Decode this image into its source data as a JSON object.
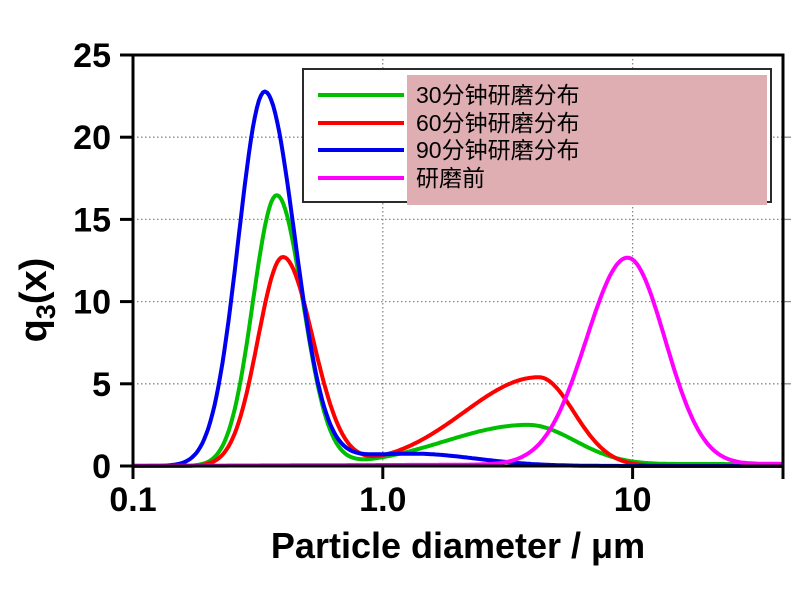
{
  "figure": {
    "background": "#ffffff",
    "frame_color": "#000000",
    "grid_color": "#8a8a8a"
  },
  "chart_data": {
    "type": "line",
    "title": "",
    "x_axis": {
      "label": "Particle diameter / μm",
      "scale": "log",
      "min": 0.1,
      "max": 40,
      "tick_values": [
        0.1,
        1.0,
        10,
        40
      ],
      "tick_labels": [
        "0.1",
        "1.0",
        "10",
        ""
      ]
    },
    "y_axis": {
      "label": "q3(x)",
      "label_parts": {
        "base": "q",
        "sub": "3",
        "rest": "(x)"
      },
      "min": 0,
      "max": 25,
      "tick_values": [
        0,
        5,
        10,
        15,
        20,
        25
      ],
      "tick_labels": [
        "0",
        "5",
        "10",
        "15",
        "20",
        "25"
      ]
    },
    "grid": {
      "horizontal_at": [
        5,
        10,
        15,
        20
      ],
      "vertical_at": [
        1.0,
        10
      ],
      "style": "dotted"
    },
    "legend": {
      "position": "top-right-inside",
      "highlight_color": "#dfaeb2",
      "items": [
        "30分钟研磨分布",
        "60分钟研磨分布",
        "90分钟研磨分布",
        "研磨前"
      ]
    },
    "series": [
      {
        "name": "30分钟研磨分布",
        "color": "#00be00",
        "peaks": [
          {
            "x": 0.38,
            "q3": 16.5
          },
          {
            "x": 3.8,
            "q3": 2.6
          }
        ],
        "lognormal_components": [
          {
            "a": 16.45,
            "mu": -0.425,
            "sigma": 0.095,
            "sigma_r": 0.105
          },
          {
            "a": 2.5,
            "mu": 0.58,
            "sigma": 0.33,
            "sigma_r": 0.19
          },
          {
            "a": 0.12,
            "mu": 1.3,
            "sigma": 0.25,
            "sigma_r": 0.4
          }
        ]
      },
      {
        "name": "60分钟研磨分布",
        "color": "#ff0000",
        "peaks": [
          {
            "x": 0.4,
            "q3": 12.8
          },
          {
            "x": 4.2,
            "q3": 5.5
          }
        ],
        "lognormal_components": [
          {
            "a": 12.7,
            "mu": -0.4,
            "sigma": 0.1,
            "sigma_r": 0.12
          },
          {
            "a": 5.4,
            "mu": 0.625,
            "sigma": 0.3,
            "sigma_r": 0.14
          }
        ]
      },
      {
        "name": "90分钟研磨分布",
        "color": "#0000f0",
        "peaks": [
          {
            "x": 0.34,
            "q3": 22.7
          },
          {
            "x": 1.3,
            "q3": 0.8
          }
        ],
        "lognormal_components": [
          {
            "a": 22.6,
            "mu": -0.473,
            "sigma": 0.105,
            "sigma_r": 0.12
          },
          {
            "a": 0.75,
            "mu": 0.12,
            "sigma": 0.35,
            "sigma_r": 0.25
          }
        ]
      },
      {
        "name": "研磨前",
        "color": "#ff00ff",
        "peaks": [
          {
            "x": 9.5,
            "q3": 12.8
          }
        ],
        "lognormal_components": [
          {
            "a": 12.6,
            "mu": 0.98,
            "sigma": 0.165,
            "sigma_r": 0.15
          },
          {
            "a": 0.08,
            "mu": 0.7,
            "sigma": 0.9,
            "sigma_r": 0.6
          },
          {
            "a": 0.1,
            "mu": 1.6,
            "sigma": 0.15,
            "sigma_r": 0.12
          }
        ]
      }
    ]
  }
}
